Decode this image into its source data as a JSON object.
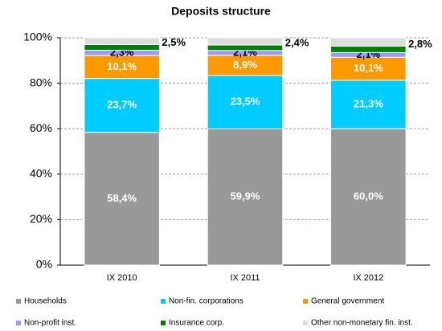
{
  "chart_data": {
    "type": "stacked_bar",
    "title": "Deposits structure",
    "categories": [
      "IX 2010",
      "IX 2011",
      "IX 2012"
    ],
    "series": [
      {
        "name": "Households",
        "color": "#999999",
        "values": [
          58.4,
          59.9,
          60.0
        ],
        "value_labels": [
          "58,4%",
          "59,9%",
          "60,0%"
        ]
      },
      {
        "name": "Non-fin. corporations",
        "color": "#00ccff",
        "values": [
          23.7,
          23.5,
          21.3
        ],
        "value_labels": [
          "23,7%",
          "23,5%",
          "21,3%"
        ]
      },
      {
        "name": "General government",
        "color": "#ff9900",
        "values": [
          10.1,
          8.9,
          10.1
        ],
        "value_labels": [
          "10,1%",
          "8,9%",
          "10,1%"
        ]
      },
      {
        "name": "Non-profit inst.",
        "color": "#9999ff",
        "values": [
          2.3,
          2.1,
          2.1
        ],
        "value_labels": [
          "2,3%",
          "2,1%",
          "2,1%"
        ]
      },
      {
        "name": "Insurance corp.",
        "color": "#008000",
        "values": [
          2.5,
          2.4,
          2.8
        ],
        "value_labels": [
          "2,5%",
          "2,4%",
          "2,8%"
        ]
      },
      {
        "name": "Other non-monetary fin. inst.",
        "color": "#dddddd",
        "values": [
          3.0,
          3.2,
          3.7
        ]
      }
    ],
    "ylim": [
      0,
      100
    ],
    "yticks": [
      {
        "value": 0,
        "label": "0%"
      },
      {
        "value": 20,
        "label": "20%"
      },
      {
        "value": 40,
        "label": "40%"
      },
      {
        "value": 60,
        "label": "60%"
      },
      {
        "value": 80,
        "label": "80%"
      },
      {
        "value": 100,
        "label": "100%"
      }
    ],
    "grid": true
  }
}
